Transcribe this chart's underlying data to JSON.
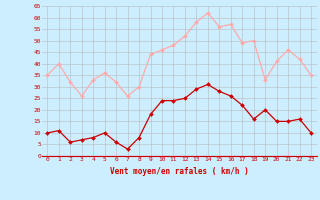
{
  "hours": [
    0,
    1,
    2,
    3,
    4,
    5,
    6,
    7,
    8,
    9,
    10,
    11,
    12,
    13,
    14,
    15,
    16,
    17,
    18,
    19,
    20,
    21,
    22,
    23
  ],
  "wind_avg": [
    10,
    11,
    6,
    7,
    8,
    10,
    6,
    3,
    8,
    18,
    24,
    24,
    25,
    29,
    31,
    28,
    26,
    22,
    16,
    20,
    15,
    15,
    16,
    10
  ],
  "wind_gust": [
    35,
    40,
    32,
    26,
    33,
    36,
    32,
    26,
    30,
    44,
    46,
    48,
    52,
    58,
    62,
    56,
    57,
    49,
    50,
    33,
    41,
    46,
    42,
    35
  ],
  "avg_color": "#cc0000",
  "gust_color": "#ffaaaa",
  "bg_color": "#cceeff",
  "grid_color": "#bbbbbb",
  "xlabel": "Vent moyen/en rafales ( km/h )",
  "yticks": [
    0,
    5,
    10,
    15,
    20,
    25,
    30,
    35,
    40,
    45,
    50,
    55,
    60,
    65
  ],
  "ylim": [
    0,
    65
  ],
  "xlim_min": -0.5,
  "xlim_max": 23.5
}
